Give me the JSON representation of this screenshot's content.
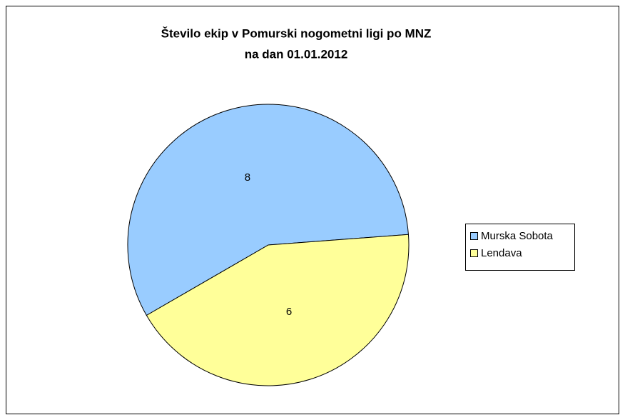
{
  "chart_data": {
    "type": "pie",
    "title": [
      "Število ekip v Pomurski nogometni ligi po MNZ",
      "na dan 01.01.2012"
    ],
    "categories": [
      "Murska Sobota",
      "Lendava"
    ],
    "values": [
      8,
      6
    ],
    "colors": [
      "#99ccff",
      "#ffff99"
    ],
    "legend": "right"
  }
}
